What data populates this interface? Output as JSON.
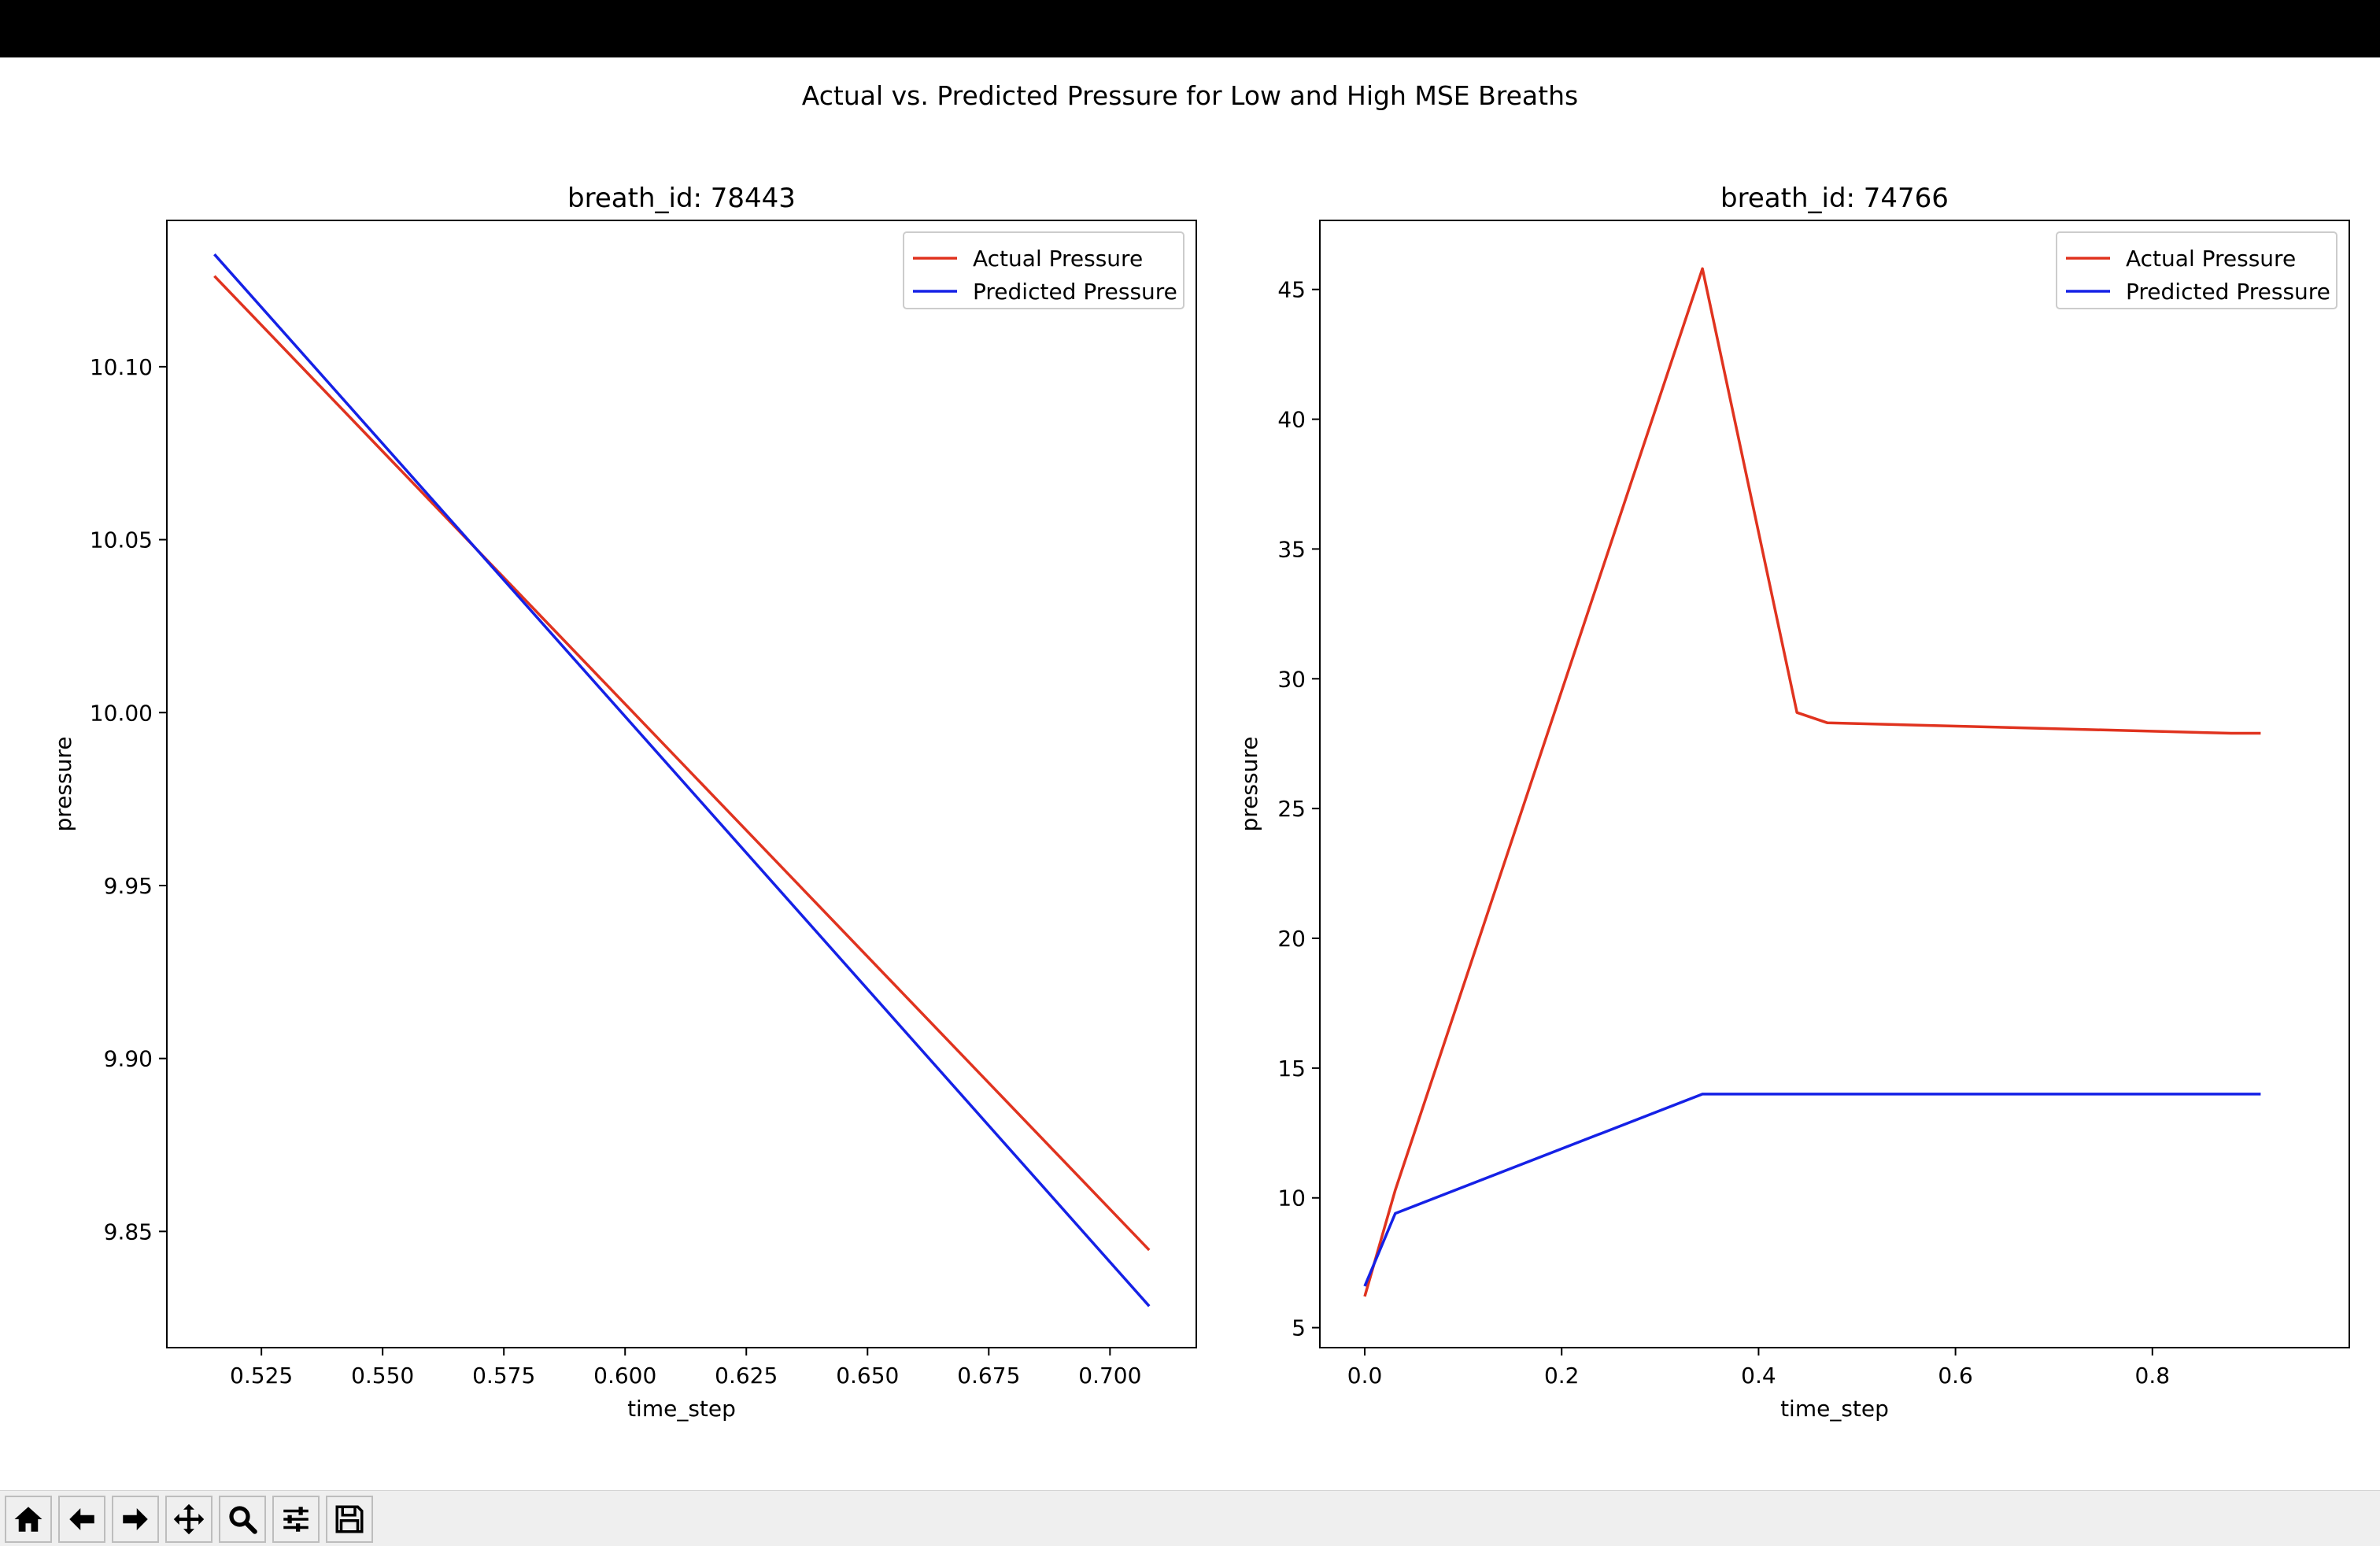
{
  "figure": {
    "suptitle": "Actual vs. Predicted Pressure for Low and High MSE Breaths"
  },
  "colors": {
    "actual": "#e0331f",
    "predicted": "#1521e6"
  },
  "chart_data": [
    {
      "type": "line",
      "title": "breath_id: 78443",
      "xlabel": "time_step",
      "ylabel": "pressure",
      "xlim": [
        0.5055,
        0.7178
      ],
      "ylim": [
        9.8164,
        10.1423
      ],
      "xticks": [
        "0.525",
        "0.550",
        "0.575",
        "0.600",
        "0.625",
        "0.650",
        "0.675",
        "0.700"
      ],
      "xtick_values": [
        0.525,
        0.55,
        0.575,
        0.6,
        0.625,
        0.65,
        0.675,
        0.7
      ],
      "yticks": [
        "9.85",
        "9.90",
        "9.95",
        "10.00",
        "10.05",
        "10.10"
      ],
      "ytick_values": [
        9.85,
        9.9,
        9.95,
        10.0,
        10.05,
        10.1
      ],
      "legend_position": "top-right",
      "grid": false,
      "series": [
        {
          "name": "Actual Pressure",
          "x": [
            0.5153,
            0.7081
          ],
          "y": [
            10.1262,
            9.8446
          ]
        },
        {
          "name": "Predicted Pressure",
          "x": [
            0.5153,
            0.7081
          ],
          "y": [
            10.1325,
            9.8284
          ]
        }
      ]
    },
    {
      "type": "line",
      "title": "breath_id: 74766",
      "xlabel": "time_step",
      "ylabel": "pressure",
      "xlim": [
        -0.0456,
        1.0
      ],
      "ylim": [
        4.23,
        47.66
      ],
      "xticks": [
        "0.0",
        "0.2",
        "0.4",
        "0.6",
        "0.8"
      ],
      "xtick_values": [
        0.0,
        0.2,
        0.4,
        0.6,
        0.8
      ],
      "yticks": [
        "5",
        "10",
        "15",
        "20",
        "25",
        "30",
        "35",
        "40",
        "45"
      ],
      "ytick_values": [
        5,
        10,
        15,
        20,
        25,
        30,
        35,
        40,
        45
      ],
      "legend_position": "top-right",
      "grid": false,
      "series": [
        {
          "name": "Actual Pressure",
          "x": [
            0.0,
            0.031,
            0.343,
            0.439,
            0.47,
            0.88,
            0.91
          ],
          "y": [
            6.2,
            10.3,
            45.8,
            28.7,
            28.3,
            27.9,
            27.9
          ]
        },
        {
          "name": "Predicted Pressure",
          "x": [
            0.0,
            0.031,
            0.343,
            0.91
          ],
          "y": [
            6.6,
            9.4,
            14.0,
            14.0
          ]
        }
      ]
    }
  ],
  "toolbar": {
    "buttons": [
      {
        "name": "home-button",
        "icon": "home-icon"
      },
      {
        "name": "back-button",
        "icon": "arrow-left-icon"
      },
      {
        "name": "forward-button",
        "icon": "arrow-right-icon"
      },
      {
        "name": "pan-button",
        "icon": "move-icon"
      },
      {
        "name": "zoom-button",
        "icon": "magnifier-icon"
      },
      {
        "name": "configure-subplots-button",
        "icon": "sliders-icon"
      },
      {
        "name": "save-button",
        "icon": "floppy-disk-icon"
      }
    ]
  }
}
